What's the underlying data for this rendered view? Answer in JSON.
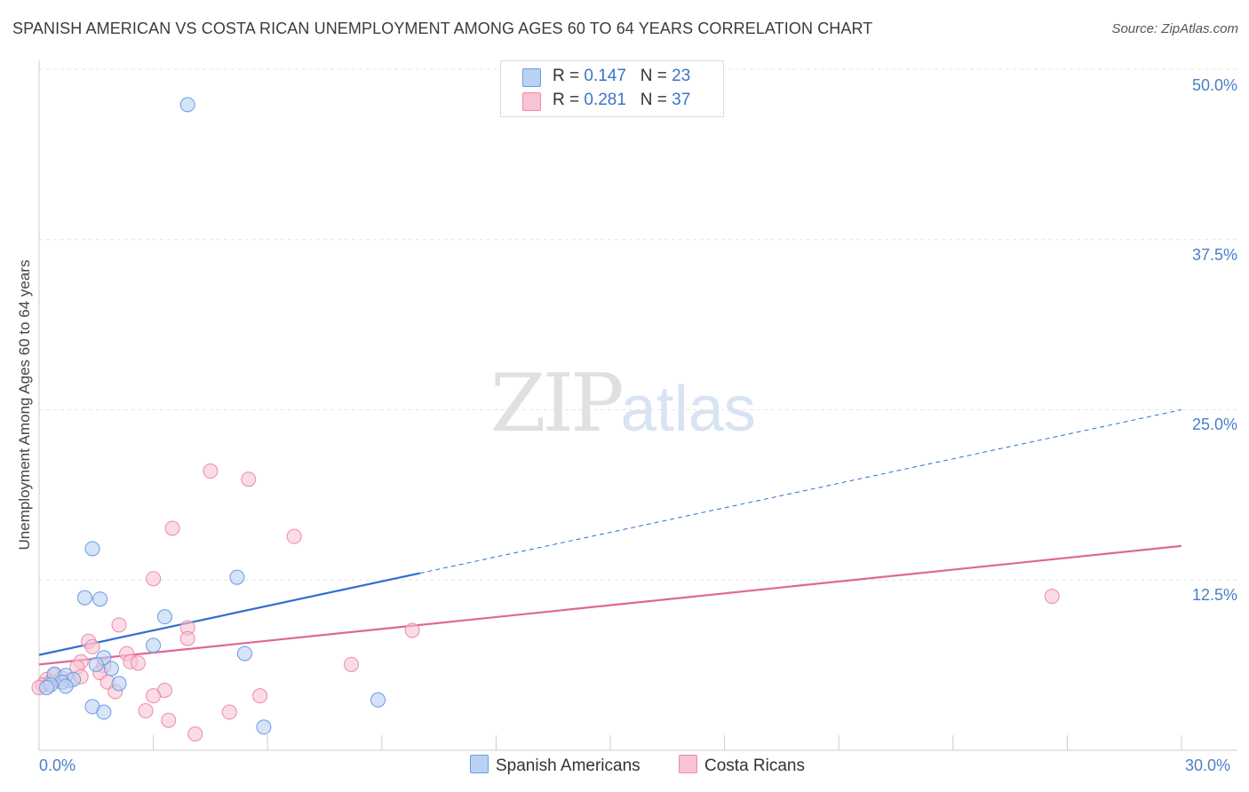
{
  "chart_data": {
    "type": "scatter",
    "title": "SPANISH AMERICAN VS COSTA RICAN UNEMPLOYMENT AMONG AGES 60 TO 64 YEARS CORRELATION CHART",
    "source": "Source: ZipAtlas.com",
    "xlabel": "",
    "ylabel": "Unemployment Among Ages 60 to 64 years",
    "xlim": [
      0,
      30
    ],
    "ylim": [
      0,
      50
    ],
    "x_tick_labels": {
      "left": "0.0%",
      "right": "30.0%"
    },
    "y_tick_labels": [
      "12.5%",
      "25.0%",
      "37.5%",
      "50.0%"
    ],
    "y_tick_values": [
      12.5,
      25.0,
      37.5,
      50.0
    ],
    "legend_stats": [
      {
        "r_label": "R = ",
        "r_value": "0.147",
        "n_label": "N = ",
        "n_value": "23"
      },
      {
        "r_label": "R = ",
        "r_value": "0.281",
        "n_label": "N = ",
        "n_value": "37"
      }
    ],
    "series": [
      {
        "name": "Spanish Americans",
        "fill": "#b9d2f3",
        "stroke": "#6a9be0",
        "line_color": "#2f6fd0",
        "trend": {
          "x0": 0,
          "y0": 7.0,
          "x1": 10,
          "y1": 13.0,
          "dashed_to_x": 30,
          "dashed_to_y": 25.0
        },
        "points": [
          [
            3.9,
            47.4
          ],
          [
            1.4,
            14.8
          ],
          [
            5.2,
            12.7
          ],
          [
            1.2,
            11.2
          ],
          [
            1.6,
            11.1
          ],
          [
            3.3,
            9.8
          ],
          [
            3.0,
            7.7
          ],
          [
            5.4,
            7.1
          ],
          [
            1.7,
            6.8
          ],
          [
            1.9,
            6.0
          ],
          [
            1.5,
            6.3
          ],
          [
            0.4,
            5.6
          ],
          [
            0.7,
            5.5
          ],
          [
            0.9,
            5.2
          ],
          [
            0.6,
            5.0
          ],
          [
            0.3,
            4.8
          ],
          [
            2.1,
            4.9
          ],
          [
            0.2,
            4.6
          ],
          [
            0.7,
            4.7
          ],
          [
            8.9,
            3.7
          ],
          [
            1.4,
            3.2
          ],
          [
            1.7,
            2.8
          ],
          [
            5.9,
            1.7
          ]
        ]
      },
      {
        "name": "Costa Ricans",
        "fill": "#f8c3d4",
        "stroke": "#ec8aab",
        "line_color": "#e0669a",
        "trend": {
          "x0": 0,
          "y0": 6.3,
          "x1": 30,
          "y1": 15.0
        },
        "points": [
          [
            4.5,
            20.5
          ],
          [
            5.5,
            19.9
          ],
          [
            3.5,
            16.3
          ],
          [
            6.7,
            15.7
          ],
          [
            3.0,
            12.6
          ],
          [
            26.6,
            11.3
          ],
          [
            2.1,
            9.2
          ],
          [
            3.9,
            9.0
          ],
          [
            9.8,
            8.8
          ],
          [
            3.9,
            8.2
          ],
          [
            1.3,
            8.0
          ],
          [
            1.4,
            7.6
          ],
          [
            2.3,
            7.1
          ],
          [
            2.4,
            6.5
          ],
          [
            2.6,
            6.4
          ],
          [
            1.1,
            6.5
          ],
          [
            1.7,
            6.2
          ],
          [
            1.0,
            6.1
          ],
          [
            8.2,
            6.3
          ],
          [
            1.6,
            5.7
          ],
          [
            0.4,
            5.5
          ],
          [
            0.6,
            5.3
          ],
          [
            0.2,
            5.2
          ],
          [
            1.8,
            5.0
          ],
          [
            0.8,
            5.1
          ],
          [
            0.1,
            4.8
          ],
          [
            2.0,
            4.3
          ],
          [
            3.3,
            4.4
          ],
          [
            3.0,
            4.0
          ],
          [
            5.8,
            4.0
          ],
          [
            2.8,
            2.9
          ],
          [
            5.0,
            2.8
          ],
          [
            3.4,
            2.2
          ],
          [
            4.1,
            1.2
          ],
          [
            0.0,
            4.6
          ],
          [
            0.3,
            5.0
          ],
          [
            1.1,
            5.4
          ]
        ]
      }
    ]
  },
  "watermark": {
    "zip": "ZIP",
    "atlas": "atlas"
  }
}
